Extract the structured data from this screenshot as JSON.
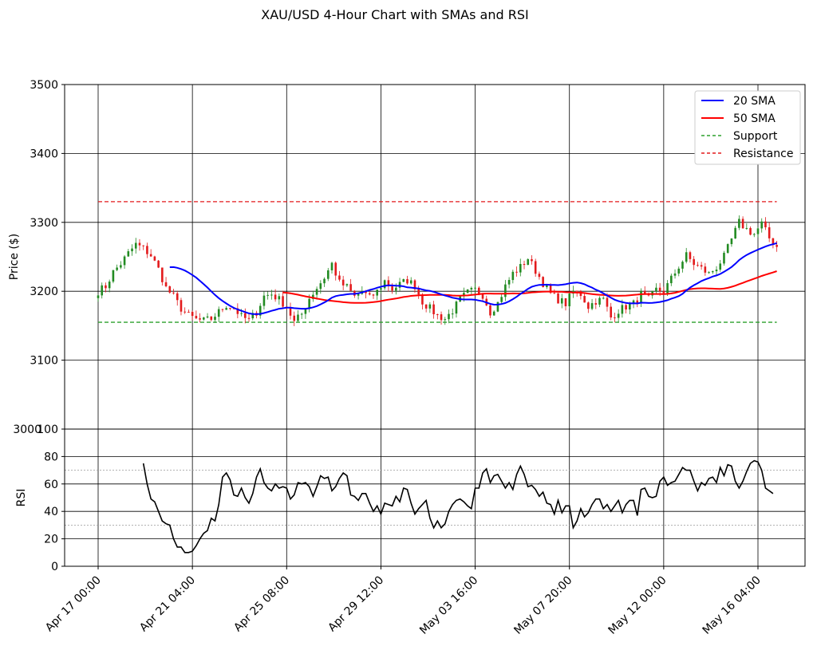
{
  "chart_data": {
    "type": "candlestick",
    "title": "XAU/USD 4-Hour Chart with SMAs and RSI",
    "interval": "4H",
    "price_panel": {
      "ylabel": "Price ($)",
      "ylim": [
        3000,
        3500
      ],
      "yticks": [
        3100,
        3200,
        3300,
        3400,
        3500
      ],
      "ytick_labels": [
        "3100",
        "3200",
        "3300",
        "3400",
        "3500"
      ],
      "bottom_tick_label": "3000",
      "grid": true,
      "up_color": "#228b22",
      "down_color": "#e31a1c",
      "close_anchors": [
        3200,
        3207,
        3228,
        3240,
        3255,
        3268,
        3262,
        3252,
        3232,
        3205,
        3192,
        3175,
        3165,
        3159,
        3157,
        3160,
        3170,
        3180,
        3176,
        3163,
        3158,
        3170,
        3193,
        3196,
        3188,
        3178,
        3155,
        3167,
        3190,
        3205,
        3220,
        3240,
        3212,
        3206,
        3192,
        3200,
        3190,
        3200,
        3215,
        3203,
        3210,
        3216,
        3208,
        3185,
        3175,
        3165,
        3160,
        3172,
        3188,
        3198,
        3202,
        3195,
        3170,
        3183,
        3207,
        3226,
        3235,
        3248,
        3230,
        3212,
        3196,
        3188,
        3182,
        3200,
        3196,
        3178,
        3186,
        3188,
        3162,
        3172,
        3178,
        3182,
        3196,
        3188,
        3202,
        3200,
        3218,
        3236,
        3252,
        3240,
        3233,
        3225,
        3235,
        3250,
        3275,
        3300,
        3290,
        3283,
        3298,
        3277,
        3265
      ],
      "bar_count": 181,
      "noise_seed": 7,
      "noise_amplitude": 6,
      "wick_amplitude": 8,
      "support": {
        "label": "Support",
        "value": 3155,
        "color": "#2ca02c"
      },
      "resistance": {
        "label": "Resistance",
        "value": 3330,
        "color": "#e31a1c"
      },
      "sma20": {
        "label": "20 SMA",
        "color": "#0000ff",
        "window": 20
      },
      "sma50": {
        "label": "50 SMA",
        "color": "#ff0000",
        "window": 50
      },
      "legend_location": "upper right"
    },
    "rsi_panel": {
      "ylabel": "RSI",
      "ylim": [
        0,
        100
      ],
      "yticks": [
        0,
        20,
        40,
        60,
        80,
        100
      ],
      "ytick_labels": [
        "0",
        "20",
        "40",
        "60",
        "80",
        "100"
      ],
      "overbought": 70,
      "oversold": 30,
      "color": "#000000",
      "values_start_bar": 12,
      "values": [
        75,
        60,
        49,
        47,
        40,
        33,
        31,
        30,
        20,
        14,
        14,
        10,
        10,
        11,
        15,
        20,
        24,
        26,
        35,
        33,
        45,
        65,
        68,
        63,
        52,
        51,
        57,
        50,
        46,
        53,
        65,
        71,
        61,
        57,
        55,
        60,
        57,
        58,
        57,
        49,
        52,
        61,
        60,
        61,
        58,
        51,
        58,
        66,
        64,
        65,
        55,
        58,
        64,
        68,
        66,
        52,
        51,
        48,
        53,
        53,
        46,
        40,
        44,
        38,
        46,
        45,
        44,
        51,
        47,
        57,
        56,
        46,
        38,
        42,
        45,
        48,
        35,
        28,
        33,
        28,
        31,
        40,
        45,
        48,
        49,
        47,
        44,
        42,
        57,
        57,
        68,
        71,
        61,
        66,
        67,
        62,
        57,
        61,
        56,
        67,
        73,
        67,
        58,
        59,
        56,
        51,
        54,
        46,
        45,
        38,
        48,
        39,
        44,
        44,
        28,
        33,
        42,
        36,
        39,
        45,
        49,
        49,
        42,
        45,
        40,
        44,
        48,
        39,
        45,
        48,
        48,
        37,
        56,
        57,
        51,
        50,
        51,
        62,
        65,
        59,
        61,
        62,
        67,
        72,
        70,
        70,
        62,
        55,
        61,
        59,
        64,
        65,
        61,
        72,
        66,
        74,
        73,
        62,
        57,
        62,
        69,
        75,
        77,
        76,
        70,
        57,
        55,
        53
      ]
    },
    "x_axis": {
      "tick_labels": [
        "Apr 17 00:00",
        "Apr 21 04:00",
        "Apr 25 08:00",
        "Apr 29 12:00",
        "May 03 16:00",
        "May 07 20:00",
        "May 12 00:00",
        "May 16 04:00"
      ],
      "tick_bar_index": [
        0,
        25,
        50,
        75,
        100,
        125,
        150,
        175
      ],
      "label_rotation_deg": -45
    }
  }
}
